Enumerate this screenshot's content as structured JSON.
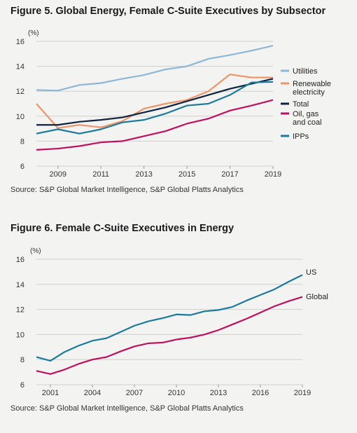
{
  "figures": [
    {
      "title": "Figure 5. Global Energy, Female C-Suite Executives by Subsector",
      "source": "Source: S&P Global Market Intelligence, S&P Global Platts Analytics"
    },
    {
      "title": "Figure 6. Female C-Suite Executives in Energy",
      "source": "Source: S&P Global Market Intelligence, S&P Global Platts Analytics"
    }
  ],
  "chart_data": [
    {
      "type": "line",
      "unit_label": "(%)",
      "x": [
        2008,
        2009,
        2010,
        2011,
        2012,
        2013,
        2014,
        2015,
        2016,
        2017,
        2018,
        2019
      ],
      "x_ticks": [
        "2009",
        "2011",
        "2013",
        "2015",
        "2017",
        "2019"
      ],
      "x_tick_values": [
        2009,
        2011,
        2013,
        2015,
        2017,
        2019
      ],
      "y_ticks": [
        "6",
        "8",
        "10",
        "12",
        "14",
        "16"
      ],
      "ylim": [
        6,
        16
      ],
      "grid": true,
      "legend_position": "right",
      "series": [
        {
          "name": "Utilities",
          "color": "#8db7d6",
          "values": [
            12.1,
            12.05,
            12.5,
            12.65,
            13.0,
            13.3,
            13.75,
            14.0,
            14.6,
            14.9,
            15.25,
            15.65
          ]
        },
        {
          "name": "Renewable electricity",
          "legend_lines": [
            "Renewable",
            "electricity"
          ],
          "color": "#f0956a",
          "values": [
            11.0,
            9.05,
            9.3,
            9.1,
            9.6,
            10.6,
            11.0,
            11.3,
            12.0,
            13.35,
            13.1,
            13.1
          ]
        },
        {
          "name": "Total",
          "color": "#0f2240",
          "values": [
            9.3,
            9.3,
            9.55,
            9.7,
            9.9,
            10.3,
            10.7,
            11.2,
            11.7,
            12.2,
            12.6,
            13.0
          ]
        },
        {
          "name": "Oil, gas and coal",
          "legend_lines": [
            "Oil, gas",
            "and coal"
          ],
          "color": "#c0105e",
          "values": [
            7.3,
            7.4,
            7.6,
            7.9,
            8.0,
            8.4,
            8.8,
            9.4,
            9.8,
            10.45,
            10.85,
            11.3
          ]
        },
        {
          "name": "IPPs",
          "color": "#1b7a9e",
          "values": [
            8.6,
            8.95,
            8.6,
            8.95,
            9.5,
            9.7,
            10.2,
            10.85,
            11.0,
            11.7,
            12.7,
            12.75
          ]
        }
      ]
    },
    {
      "type": "line",
      "unit_label": "(%)",
      "x": [
        2000,
        2001,
        2002,
        2003,
        2004,
        2005,
        2006,
        2007,
        2008,
        2009,
        2010,
        2011,
        2012,
        2013,
        2014,
        2015,
        2016,
        2017,
        2018,
        2019
      ],
      "x_ticks": [
        "2001",
        "2004",
        "2007",
        "2010",
        "2013",
        "2016",
        "2019"
      ],
      "x_tick_values": [
        2001,
        2004,
        2007,
        2010,
        2013,
        2016,
        2019
      ],
      "y_ticks": [
        "6",
        "8",
        "10",
        "12",
        "14",
        "16"
      ],
      "ylim": [
        6,
        16
      ],
      "grid": true,
      "legend_position": "line-end labels",
      "series": [
        {
          "name": "US",
          "color": "#1b7a9e",
          "values": [
            8.2,
            7.9,
            8.6,
            9.1,
            9.5,
            9.7,
            10.2,
            10.7,
            11.05,
            11.3,
            11.6,
            11.55,
            11.85,
            11.95,
            12.2,
            12.7,
            13.15,
            13.6,
            14.2,
            14.75
          ]
        },
        {
          "name": "Global",
          "color": "#c0105e",
          "values": [
            7.1,
            6.85,
            7.2,
            7.65,
            8.0,
            8.2,
            8.65,
            9.05,
            9.3,
            9.35,
            9.6,
            9.75,
            10.0,
            10.35,
            10.8,
            11.25,
            11.75,
            12.25,
            12.65,
            13.0
          ]
        }
      ]
    }
  ]
}
